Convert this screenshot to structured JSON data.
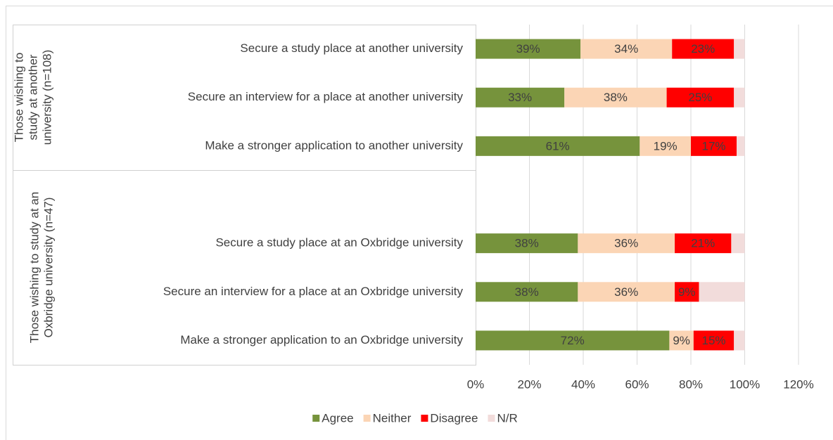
{
  "chart_data": {
    "type": "stacked_barh",
    "group_labels": [
      [
        "Those wishing to",
        "study at another",
        "university (n=108)"
      ],
      [
        "Those wishing to study at an",
        "Oxbridge university (n=47)"
      ]
    ],
    "categories": [
      "Secure a study place at another university",
      "Secure an interview for a place at another university",
      "Make a stronger application to another university",
      null,
      "Secure a study place at an Oxbridge university",
      "Secure an interview for a place at an Oxbridge university",
      "Make a stronger application to an Oxbridge university"
    ],
    "series": [
      {
        "name": "Agree",
        "color": "#76933c",
        "values": [
          39,
          33,
          61,
          null,
          38,
          38,
          72
        ],
        "value_labels": [
          "39%",
          "33%",
          "61%",
          null,
          "38%",
          "38%",
          "72%"
        ]
      },
      {
        "name": "Neither",
        "color": "#fbd5b5",
        "values": [
          34,
          38,
          19,
          null,
          36,
          36,
          9
        ],
        "value_labels": [
          "34%",
          "38%",
          "19%",
          null,
          "36%",
          "36%",
          "9%"
        ]
      },
      {
        "name": "Disagree",
        "color": "#ff0000",
        "values": [
          23,
          25,
          17,
          null,
          21,
          9,
          15
        ],
        "value_labels": [
          "23%",
          "25%",
          "17%",
          null,
          "21%",
          "9%",
          "15%"
        ]
      },
      {
        "name": "N/R",
        "color": "#f2dcdb",
        "values": [
          4,
          4,
          3,
          null,
          5,
          17,
          4
        ]
      }
    ],
    "xlim": [
      0,
      120
    ],
    "xticks": [
      {
        "value": 0,
        "label": "0%"
      },
      {
        "value": 20,
        "label": "20%"
      },
      {
        "value": 40,
        "label": "40%"
      },
      {
        "value": 60,
        "label": "60%"
      },
      {
        "value": 80,
        "label": "80%"
      },
      {
        "value": 100,
        "label": "100%"
      },
      {
        "value": 120,
        "label": "120%"
      }
    ],
    "grid": true,
    "legend": "bottom"
  }
}
